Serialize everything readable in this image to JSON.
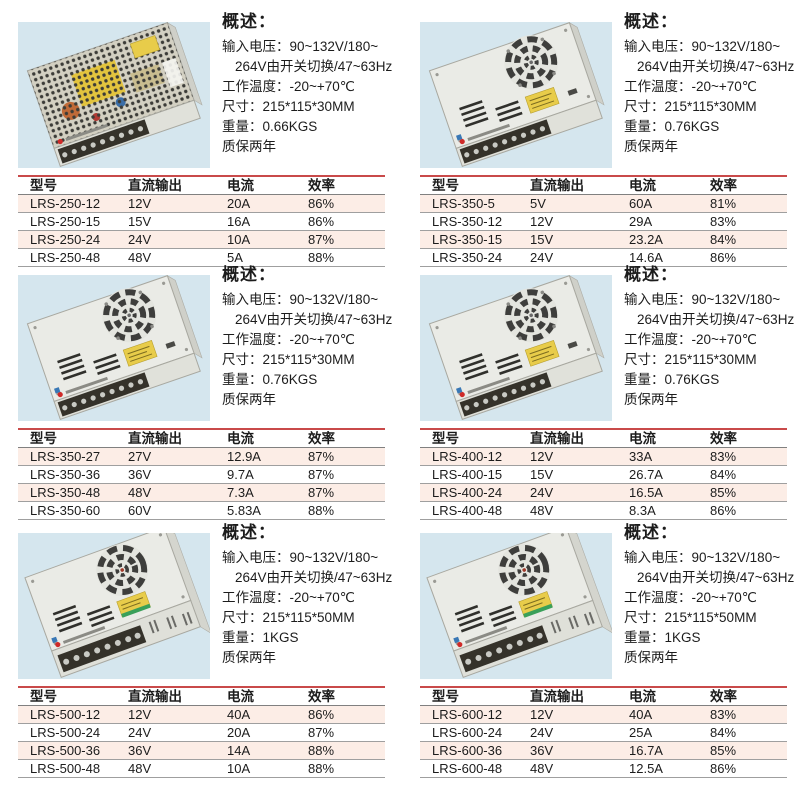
{
  "colors": {
    "photo_background": "#d5e6ee",
    "table_top_rule": "#c94a4a",
    "table_row_alt": "#fcede6",
    "table_row_rule": "#9f9f9f",
    "table_header_rule": "#808080",
    "text": "#1c1c1c",
    "label_yellow": "#e8cc4a",
    "case_metal": "#eaebe6"
  },
  "sections": [
    {
      "photo_icon": "psu-perforated-top-photo",
      "overview": {
        "title": "概述：",
        "lines": [
          "输入电压：90~132V/180~",
          "264V由开关切换/47~63Hz",
          "工作温度：-20~+70℃",
          "尺寸：215*115*30MM",
          "重量：0.66KGS",
          "质保两年"
        ]
      },
      "table": {
        "headers": [
          "型号",
          "直流输出",
          "电流",
          "效率"
        ],
        "rows": [
          [
            "LRS-250-12",
            "12V",
            "20A",
            "86%"
          ],
          [
            "LRS-250-15",
            "15V",
            "16A",
            "86%"
          ],
          [
            "LRS-250-24",
            "24V",
            "10A",
            "87%"
          ],
          [
            "LRS-250-48",
            "48V",
            "5A",
            "88%"
          ]
        ]
      }
    },
    {
      "photo_icon": "psu-fan-top-photo",
      "overview": {
        "title": "概述：",
        "lines": [
          "输入电压：90~132V/180~",
          "264V由开关切换/47~63Hz",
          "工作温度：-20~+70℃",
          "尺寸：215*115*30MM",
          "重量：0.76KGS",
          "质保两年"
        ]
      },
      "table": {
        "headers": [
          "型号",
          "直流输出",
          "电流",
          "效率"
        ],
        "rows": [
          [
            "LRS-350-5",
            "5V",
            "60A",
            "81%"
          ],
          [
            "LRS-350-12",
            "12V",
            "29A",
            "83%"
          ],
          [
            "LRS-350-15",
            "15V",
            "23.2A",
            "84%"
          ],
          [
            "LRS-350-24",
            "24V",
            "14.6A",
            "86%"
          ]
        ]
      }
    },
    {
      "photo_icon": "psu-fan-top-photo",
      "overview": {
        "title": "概述：",
        "lines": [
          "输入电压：90~132V/180~",
          "264V由开关切换/47~63Hz",
          "工作温度：-20~+70℃",
          "尺寸：215*115*30MM",
          "重量：0.76KGS",
          "质保两年"
        ]
      },
      "table": {
        "headers": [
          "型号",
          "直流输出",
          "电流",
          "效率"
        ],
        "rows": [
          [
            "LRS-350-27",
            "27V",
            "12.9A",
            "87%"
          ],
          [
            "LRS-350-36",
            "36V",
            "9.7A",
            "87%"
          ],
          [
            "LRS-350-48",
            "48V",
            "7.3A",
            "87%"
          ],
          [
            "LRS-350-60",
            "60V",
            "5.83A",
            "88%"
          ]
        ]
      }
    },
    {
      "photo_icon": "psu-fan-top-photo",
      "overview": {
        "title": "概述：",
        "lines": [
          "输入电压：90~132V/180~",
          "264V由开关切换/47~63Hz",
          "工作温度：-20~+70℃",
          "尺寸：215*115*30MM",
          "重量：0.76KGS",
          "质保两年"
        ]
      },
      "table": {
        "headers": [
          "型号",
          "直流输出",
          "电流",
          "效率"
        ],
        "rows": [
          [
            "LRS-400-12",
            "12V",
            "33A",
            "83%"
          ],
          [
            "LRS-400-15",
            "15V",
            "26.7A",
            "84%"
          ],
          [
            "LRS-400-24",
            "24V",
            "16.5A",
            "85%"
          ],
          [
            "LRS-400-48",
            "48V",
            "8.3A",
            "86%"
          ]
        ]
      }
    },
    {
      "photo_icon": "psu-fan-tall-photo",
      "overview": {
        "title": "概述：",
        "lines": [
          "输入电压：90~132V/180~",
          "264V由开关切换/47~63Hz",
          "工作温度：-20~+70℃",
          "尺寸：215*115*50MM",
          "重量：1KGS",
          "质保两年"
        ]
      },
      "table": {
        "headers": [
          "型号",
          "直流输出",
          "电流",
          "效率"
        ],
        "rows": [
          [
            "LRS-500-12",
            "12V",
            "40A",
            "86%"
          ],
          [
            "LRS-500-24",
            "24V",
            "20A",
            "87%"
          ],
          [
            "LRS-500-36",
            "36V",
            "14A",
            "88%"
          ],
          [
            "LRS-500-48",
            "48V",
            "10A",
            "88%"
          ]
        ]
      }
    },
    {
      "photo_icon": "psu-fan-tall-photo",
      "overview": {
        "title": "概述：",
        "lines": [
          "输入电压：90~132V/180~",
          "264V由开关切换/47~63Hz",
          "工作温度：-20~+70℃",
          "尺寸：215*115*50MM",
          "重量：1KGS",
          "质保两年"
        ]
      },
      "table": {
        "headers": [
          "型号",
          "直流输出",
          "电流",
          "效率"
        ],
        "rows": [
          [
            "LRS-600-12",
            "12V",
            "40A",
            "83%"
          ],
          [
            "LRS-600-24",
            "24V",
            "25A",
            "84%"
          ],
          [
            "LRS-600-36",
            "36V",
            "16.7A",
            "85%"
          ],
          [
            "LRS-600-48",
            "48V",
            "12.5A",
            "86%"
          ]
        ]
      }
    }
  ]
}
